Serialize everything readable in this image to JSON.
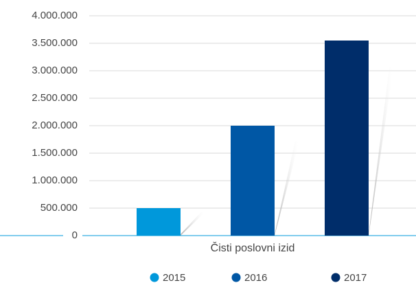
{
  "chart_data": {
    "type": "bar",
    "categories": [
      "Čisti poslovni izid"
    ],
    "series": [
      {
        "name": "2015",
        "color": "#0098db",
        "values": [
          500000
        ]
      },
      {
        "name": "2016",
        "color": "#0057a5",
        "values": [
          2000000
        ]
      },
      {
        "name": "2017",
        "color": "#002d6a",
        "values": [
          3550000
        ]
      }
    ],
    "ylim": [
      0,
      4000000
    ],
    "yticks": [
      0,
      {
        "value": 500000,
        "label": "500.000"
      },
      {
        "value": 1000000,
        "label": "1.000.000"
      },
      {
        "value": 1500000,
        "label": "1.500.000"
      },
      {
        "value": 2000000,
        "label": "2.000.000"
      },
      {
        "value": 2500000,
        "label": "2.500.000"
      },
      {
        "value": 3000000,
        "label": "3.000.000"
      },
      {
        "value": 3500000,
        "label": "3.500.000"
      },
      {
        "value": 4000000,
        "label": "4.000.000"
      }
    ],
    "grid": true,
    "legend": "bottom"
  }
}
